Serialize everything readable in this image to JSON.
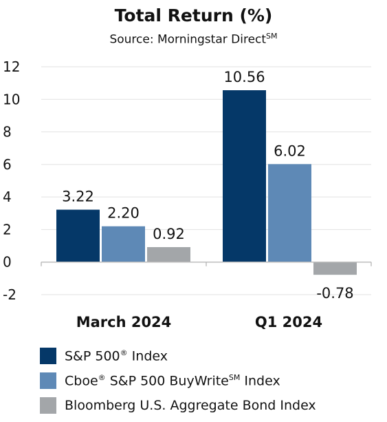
{
  "chart_data": {
    "type": "bar",
    "title": "Total Return (%)",
    "subtitle": "Source: Morningstar Direct",
    "subtitle_sup": "SM",
    "categories": [
      "March 2024",
      "Q1 2024"
    ],
    "ylim": [
      -2,
      12
    ],
    "yticks": [
      -2,
      0,
      2,
      4,
      6,
      8,
      10,
      12
    ],
    "grid": true,
    "legend_position": "bottom",
    "series": [
      {
        "name": "S&P 500® Index",
        "color": "#053868",
        "values": [
          3.22,
          10.56
        ],
        "labels": [
          "3.22",
          "10.56"
        ]
      },
      {
        "name": "Cboe® S&P 500 BuyWrite℠ Index",
        "color": "#5e89b6",
        "values": [
          2.2,
          6.02
        ],
        "labels": [
          "2.20",
          "6.02"
        ]
      },
      {
        "name": "Bloomberg U.S. Aggregate Bond Index",
        "color": "#a3a6a9",
        "values": [
          0.92,
          -0.78
        ],
        "labels": [
          "0.92",
          "-0.78"
        ]
      }
    ]
  },
  "legend": [
    {
      "pre": "S&P 500",
      "sup": "®",
      "post": " Index",
      "color": "#053868"
    },
    {
      "pre": "Cboe",
      "sup": "®",
      "post": " S&P 500 BuyWrite",
      "sup2": "SM",
      "post2": " Index",
      "color": "#5e89b6"
    },
    {
      "pre": "Bloomberg U.S. Aggregate Bond Index",
      "color": "#a3a6a9"
    }
  ]
}
